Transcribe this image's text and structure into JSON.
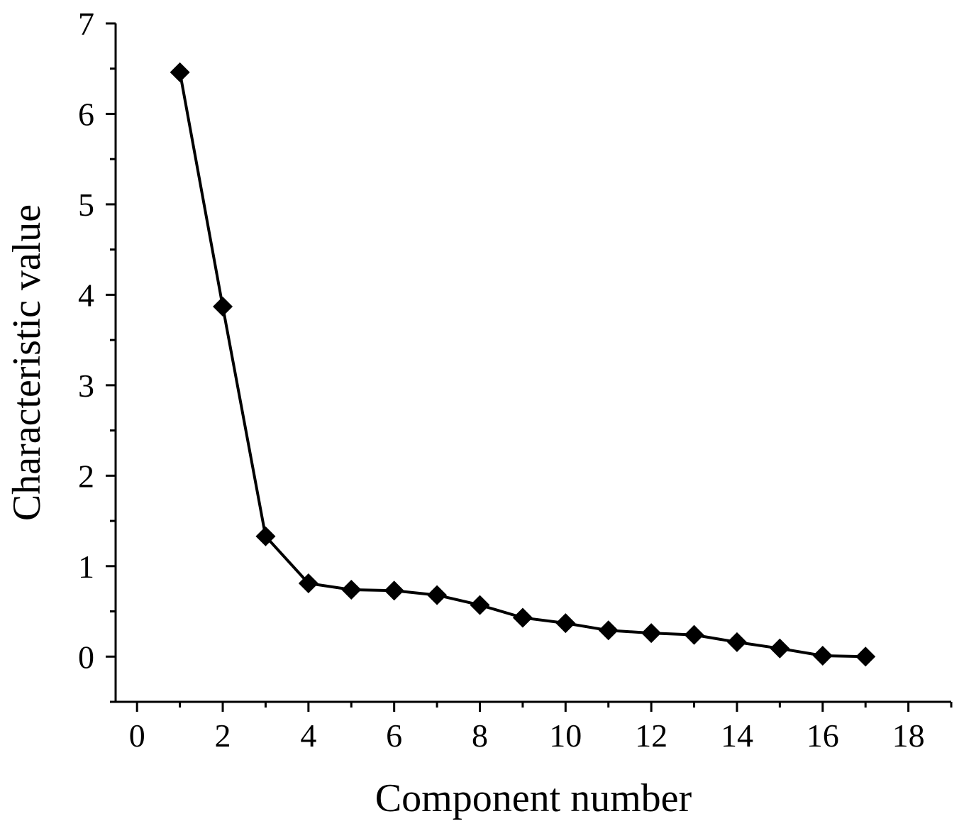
{
  "chart_data": {
    "type": "line",
    "title": "",
    "xlabel": "Component number",
    "ylabel": "Characteristic value",
    "xlim": [
      -0.5,
      19
    ],
    "ylim": [
      -0.5,
      7
    ],
    "xticks": [
      0,
      2,
      4,
      6,
      8,
      10,
      12,
      14,
      16,
      18
    ],
    "yticks": [
      0,
      1,
      2,
      3,
      4,
      5,
      6,
      7
    ],
    "x_minor_step": 1,
    "y_minor_step": 0.5,
    "grid": false,
    "legend": "none",
    "marker": "diamond",
    "line_color": "#000000",
    "marker_color": "#000000",
    "series": [
      {
        "x": [
          1,
          2,
          3,
          4,
          5,
          6,
          7,
          8,
          9,
          10,
          11,
          12,
          13,
          14,
          15,
          16,
          17
        ],
        "values": [
          6.46,
          3.87,
          1.33,
          0.81,
          0.74,
          0.73,
          0.68,
          0.57,
          0.43,
          0.37,
          0.29,
          0.26,
          0.24,
          0.16,
          0.09,
          0.01,
          0.0
        ]
      }
    ]
  }
}
